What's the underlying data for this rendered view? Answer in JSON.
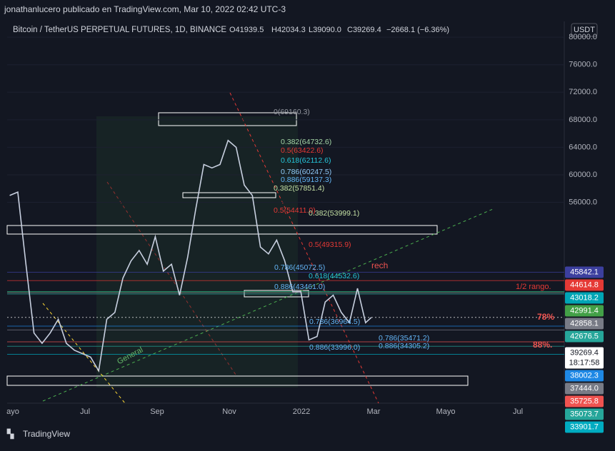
{
  "header": {
    "publisher": "jonathanlucero publicado en TradingView.com, Mar 10, 2022 02:42 UTC-3",
    "symbol": "Bitcoin / TetherUS PERPETUAL FUTURES, 1D, BINANCE",
    "ohlc": [
      "O41939.5",
      "H42034.3",
      "L39090.0",
      "C39269.4",
      "−2668.1 (−6.36%)"
    ],
    "currency": "USDT"
  },
  "chart_data": {
    "type": "line",
    "color": "#c8d0e0",
    "x": [
      0,
      7,
      14,
      21,
      28,
      35,
      42,
      49,
      56,
      63,
      70,
      77,
      84,
      91,
      98,
      105,
      112,
      119,
      126,
      133,
      140,
      147,
      154,
      161,
      168,
      175,
      182,
      189,
      196,
      203,
      210,
      217,
      224,
      231,
      238,
      245,
      252,
      259,
      266,
      273,
      280,
      287,
      294,
      301,
      308,
      313
    ],
    "values": [
      57000,
      57500,
      47000,
      37000,
      35500,
      37000,
      39000,
      35500,
      34500,
      34000,
      33500,
      31500,
      39000,
      40000,
      45000,
      47500,
      49000,
      47000,
      51000,
      46000,
      47000,
      42500,
      48000,
      55000,
      61500,
      61000,
      61500,
      65000,
      64000,
      58500,
      57000,
      49500,
      48500,
      50500,
      47500,
      43000,
      43000,
      36000,
      36500,
      41500,
      42500,
      40000,
      38500,
      43500,
      38500,
      39269.4
    ],
    "xlim": [
      -1,
      480
    ],
    "ylim": [
      26800,
      82300
    ],
    "x_labels": [
      "ayo",
      "Jul",
      "Sep",
      "Nov",
      "2022",
      "Mar",
      "Mayo",
      "Jul"
    ],
    "yticks": [
      {
        "value": 80000,
        "label": "80000.0"
      },
      {
        "value": 76000,
        "label": "76000.0"
      },
      {
        "value": 72000,
        "label": "72000.0"
      },
      {
        "value": 68000,
        "label": "68000.0"
      },
      {
        "value": 64000,
        "label": "64000.0"
      },
      {
        "value": 60000,
        "label": "60000.0"
      },
      {
        "value": 56000,
        "label": "56000.0"
      }
    ],
    "price_tags": [
      {
        "value": 45842.1,
        "label": "45842.1",
        "color": "#3c3f9e"
      },
      {
        "value": 44614.8,
        "label": "44614.8",
        "color": "#e53935"
      },
      {
        "value": 43018.2,
        "label": "43018.2",
        "color": "#00a5b5"
      },
      {
        "value": 42991.4,
        "label": "42991.4",
        "color": "#43a047"
      },
      {
        "value": 42858.1,
        "label": "42858.1",
        "color": "#787b86"
      },
      {
        "value": 42676.5,
        "label": "42676.5",
        "color": "#26a69a"
      },
      {
        "value": 39269.4,
        "label": "39269.4",
        "color": "#ffffff"
      },
      {
        "value": 38002.3,
        "label": "38002.3",
        "color": "#1e88e5"
      },
      {
        "value": 37444.0,
        "label": "37444.0",
        "color": "#787b86"
      },
      {
        "value": 35725.8,
        "label": "35725.8",
        "color": "#ef5350"
      },
      {
        "value": 35073.7,
        "label": "35073.7",
        "color": "#26a69a"
      },
      {
        "value": 33901.7,
        "label": "33901.7",
        "color": "#00acc1"
      }
    ],
    "countdown": "18:17:58",
    "annotations": [
      "0(69160.3)",
      "0.382(64732.6)",
      "0.5(63422.6)",
      "0.618(62112.6)",
      "0.786(60247.5)",
      "0.886(59137.3)",
      "0.382(57851.4)",
      "0.5(54411.0)",
      "0.382(53999.1)",
      "0.5(49315.9)",
      "0.786(45072.5)",
      "0.886(43461.0)",
      "0.618(44532.6)",
      "rech",
      "1/2 rango.",
      "78%",
      "88%.",
      "General",
      "0.786(36964.5)",
      "0.886(33996.0)",
      "0.786(35471.2)",
      "0.886(34305.2)"
    ]
  },
  "footer": "TradingView"
}
